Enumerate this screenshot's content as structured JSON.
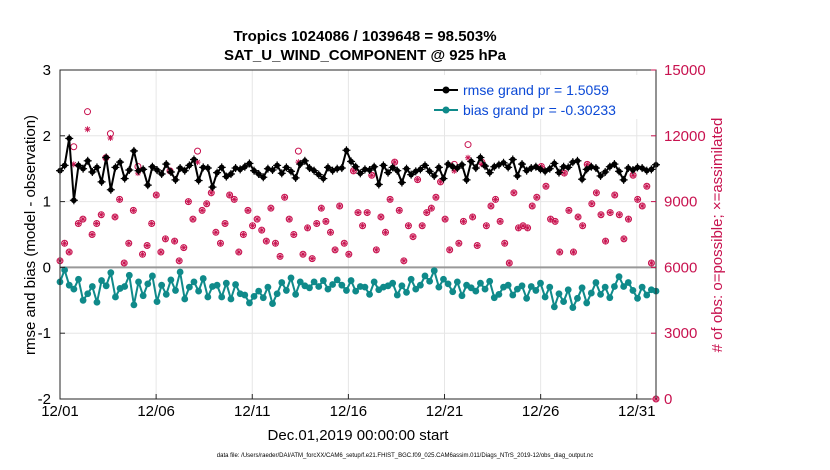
{
  "chart_data": {
    "type": "line",
    "title": "Tropics 1024086 / 1039648 = 98.503%",
    "subtitle": "SAT_U_WIND_COMPONENT @ 925 hPa",
    "xlabel": "Dec.01,2019 00:00:00 start",
    "ylabel": "rmse and bias (model - observation)",
    "ylabel_right": "# of obs: o=possible; ×=assimilated",
    "footnote": "data file: /Users/raeder/DAI/ATM_forcXX/CAM6_setup/f.e21.FHIST_BGC.f09_025.CAM6assim.011/Diags_NTrS_2019-12/obs_diag_output.nc",
    "x_start_day": 1,
    "x_end_day": 32,
    "xticks": [
      1,
      6,
      11,
      16,
      21,
      26,
      31
    ],
    "xtick_labels": [
      "12/01",
      "12/06",
      "12/11",
      "12/16",
      "12/21",
      "12/26",
      "12/31"
    ],
    "ylim": [
      -2,
      3
    ],
    "yticks": [
      -2,
      -1,
      0,
      1,
      2,
      3
    ],
    "ylim_right": [
      0,
      15000
    ],
    "yticks_right": [
      0,
      3000,
      6000,
      9000,
      12000,
      15000
    ],
    "series": [
      {
        "name": "rmse grand pr = 1.5059",
        "axis": "left",
        "color": "#000000",
        "marker": "hexagram",
        "values": [
          1.47,
          1.55,
          1.96,
          1.02,
          1.55,
          1.5,
          1.62,
          1.45,
          1.52,
          1.3,
          1.67,
          1.18,
          1.52,
          1.6,
          1.35,
          1.48,
          1.77,
          1.47,
          1.49,
          1.25,
          1.53,
          1.48,
          1.42,
          1.57,
          1.45,
          1.33,
          1.51,
          1.47,
          1.55,
          1.64,
          1.32,
          1.52,
          1.51,
          1.22,
          1.44,
          1.52,
          1.38,
          1.42,
          1.51,
          1.49,
          1.53,
          1.58,
          1.47,
          1.42,
          1.37,
          1.5,
          1.48,
          1.55,
          1.43,
          1.52,
          1.46,
          1.36,
          1.57,
          1.62,
          1.51,
          1.47,
          1.41,
          1.35,
          1.52,
          1.47,
          1.5,
          1.51,
          1.78,
          1.61,
          1.53,
          1.43,
          1.49,
          1.48,
          1.53,
          1.26,
          1.55,
          1.44,
          1.52,
          1.47,
          1.29,
          1.5,
          1.41,
          1.46,
          1.49,
          1.55,
          1.46,
          1.39,
          1.52,
          1.35,
          1.57,
          1.53,
          1.51,
          1.56,
          1.33,
          1.61,
          1.51,
          1.67,
          1.54,
          1.44,
          1.53,
          1.56,
          1.59,
          1.52,
          1.64,
          1.39,
          1.57,
          1.47,
          1.51,
          1.53,
          1.49,
          1.46,
          1.5,
          1.58,
          1.44,
          1.53,
          1.52,
          1.6,
          1.62,
          1.34,
          1.49,
          1.53,
          1.51,
          1.39,
          1.45,
          1.53,
          1.57,
          1.46,
          1.33,
          1.51,
          1.48,
          1.52,
          1.51,
          1.47,
          1.49,
          1.56
        ],
        "values_note": "sampled sub-daily; see plotting script for full curve"
      },
      {
        "name": "bias grand pr = -0.30233",
        "axis": "left",
        "color": "#0f8a8a",
        "marker": "circle",
        "values": [
          -0.22,
          -0.04,
          -0.27,
          -0.33,
          -0.18,
          -0.5,
          -0.4,
          -0.29,
          -0.53,
          -0.2,
          -0.28,
          -0.08,
          -0.45,
          -0.32,
          -0.29,
          -0.12,
          -0.57,
          -0.22,
          -0.43,
          -0.25,
          -0.13,
          -0.52,
          -0.27,
          -0.41,
          -0.19,
          -0.35,
          -0.07,
          -0.48,
          -0.3,
          -0.22,
          -0.36,
          -0.17,
          -0.45,
          -0.29,
          -0.27,
          -0.45,
          -0.24,
          -0.48,
          -0.26,
          -0.4,
          -0.42,
          -0.54,
          -0.44,
          -0.36,
          -0.46,
          -0.3,
          -0.55,
          -0.4,
          -0.23,
          -0.35,
          -0.16,
          -0.41,
          -0.22,
          -0.28,
          -0.31,
          -0.22,
          -0.29,
          -0.2,
          -0.33,
          -0.26,
          -0.19,
          -0.27,
          -0.35,
          -0.2,
          -0.36,
          -0.29,
          -0.3,
          -0.41,
          -0.22,
          -0.34,
          -0.3,
          -0.28,
          -0.24,
          -0.42,
          -0.28,
          -0.38,
          -0.18,
          -0.33,
          -0.27,
          -0.13,
          -0.21,
          -0.05,
          -0.3,
          -0.18,
          -0.25,
          -0.37,
          -0.22,
          -0.43,
          -0.27,
          -0.31,
          -0.36,
          -0.24,
          -0.33,
          -0.21,
          -0.46,
          -0.41,
          -0.3,
          -0.27,
          -0.42,
          -0.33,
          -0.28,
          -0.47,
          -0.29,
          -0.35,
          -0.24,
          -0.45,
          -0.3,
          -0.6,
          -0.4,
          -0.52,
          -0.34,
          -0.61,
          -0.47,
          -0.31,
          -0.54,
          -0.39,
          -0.23,
          -0.41,
          -0.3,
          -0.46,
          -0.29,
          -0.14,
          -0.29,
          -0.23,
          -0.35,
          -0.47,
          -0.3,
          -0.42,
          -0.34,
          -0.36
        ]
      },
      {
        "name": "# of obs possible",
        "axis": "right",
        "color": "#c8124f",
        "marker": "circle-open",
        "values": [
          6300,
          7100,
          6700,
          11500,
          8000,
          8200,
          13100,
          7500,
          8000,
          8400,
          11000,
          12100,
          8300,
          9100,
          6200,
          7100,
          8600,
          10600,
          6600,
          7000,
          8000,
          9300,
          6700,
          7300,
          10400,
          7200,
          6300,
          6900,
          9000,
          8200,
          11300,
          8600,
          8900,
          9400,
          7600,
          7100,
          8000,
          9300,
          9100,
          6700,
          7500,
          8600,
          7900,
          8200,
          7700,
          7200,
          8700,
          7100,
          6500,
          9200,
          8200,
          7500,
          11300,
          6600,
          7800,
          6400,
          8000,
          8700,
          8100,
          7600,
          6800,
          8800,
          7100,
          6600,
          10400,
          8500,
          7900,
          8500,
          10200,
          6800,
          8300,
          7600,
          9100,
          10800,
          8600,
          6300,
          7900,
          7400,
          10000,
          7900,
          8500,
          8700,
          9200,
          9900,
          8200,
          6800,
          10700,
          7100,
          8100,
          11600,
          8300,
          7000,
          10800,
          7900,
          8800,
          9100,
          8100,
          7100,
          6200,
          9400,
          7800,
          7900,
          7800,
          8800,
          9200,
          10600,
          9700,
          8200,
          8100,
          6700,
          10300,
          8600,
          6700,
          8300,
          7900,
          10700,
          8900,
          9400,
          8400,
          7200,
          8500,
          9300,
          8400,
          7300,
          8200,
          10200,
          9100,
          8800,
          9700,
          6200,
          0
        ]
      },
      {
        "name": "# of obs assimilated",
        "axis": "right",
        "color": "#c8124f",
        "marker": "asterisk",
        "values": [
          6300,
          7100,
          6700,
          10700,
          8000,
          8200,
          12300,
          7500,
          8000,
          8400,
          11000,
          11900,
          8300,
          9100,
          6200,
          7100,
          8600,
          10300,
          6600,
          7000,
          8000,
          9300,
          6700,
          7300,
          10400,
          7200,
          6300,
          6900,
          9000,
          8200,
          10800,
          8600,
          8900,
          9400,
          7600,
          7100,
          8000,
          9300,
          9100,
          6700,
          7500,
          8600,
          7900,
          8200,
          7700,
          7200,
          8700,
          7100,
          6500,
          9200,
          8200,
          7500,
          10800,
          6600,
          7800,
          6400,
          8000,
          8700,
          8100,
          7600,
          6800,
          8800,
          7100,
          6600,
          10400,
          8500,
          7900,
          8500,
          10200,
          6800,
          8300,
          7600,
          9100,
          10800,
          8600,
          6300,
          7900,
          7400,
          10000,
          7900,
          8500,
          8700,
          9200,
          9900,
          8200,
          6800,
          10400,
          7100,
          8100,
          11000,
          8300,
          7000,
          10700,
          7900,
          8800,
          9100,
          8100,
          7100,
          6200,
          9400,
          7800,
          7900,
          7800,
          8800,
          9200,
          10600,
          9700,
          8200,
          8100,
          6700,
          10300,
          8600,
          6700,
          8300,
          7900,
          10700,
          8900,
          9400,
          8400,
          7200,
          8500,
          9300,
          8400,
          7300,
          8200,
          10200,
          9100,
          8800,
          9700,
          6200,
          0
        ]
      }
    ],
    "legend_location": "top-right",
    "grid": true,
    "zero_line_color": "#999999"
  }
}
